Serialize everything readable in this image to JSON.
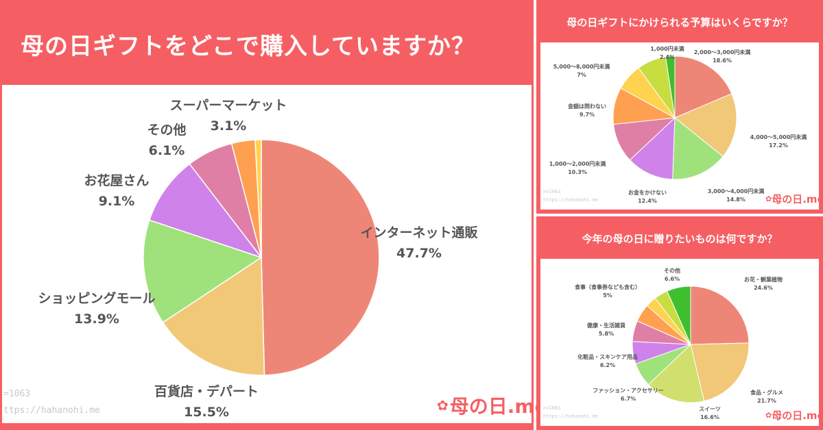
{
  "panels": {
    "main_title": "母の日ギフトをどこで購入していますか？",
    "budget_title": "母の日ギフトにかけられる予算はいくらですか？",
    "gift_title": "今年の母の日に贈りたいものは何ですか？"
  },
  "footer": {
    "main_n": "=1063",
    "main_url": "ttps://hahanohi.me",
    "small_n": "n=1063",
    "small_url": "https://hahanohi.me",
    "logo_text": "の日.me",
    "logo_mark": "母"
  },
  "colors": {
    "brand": "#f55f63",
    "purchase": [
      "#ee8677",
      "#f1c878",
      "#9fe27c",
      "#cf82ea",
      "#df7fa6",
      "#ffa050",
      "#ffd24f",
      "#b5dd3f"
    ],
    "budget": [
      "#ee8677",
      "#f1c878",
      "#9fe27c",
      "#cf82ea",
      "#df7fa6",
      "#ffa050",
      "#ffd24f",
      "#c8dd40",
      "#3fbf30"
    ],
    "gift": [
      "#ee8677",
      "#f1c878",
      "#d1df6f",
      "#9fe27c",
      "#cf82ea",
      "#df7fa6",
      "#ffa050",
      "#ffd24f",
      "#c8dd40",
      "#3fbf30"
    ]
  },
  "chart_data": [
    {
      "type": "pie",
      "title": "母の日ギフトをどこで購入していますか？",
      "categories": [
        "インターネット通販",
        "百貨店・デパート",
        "ショッピングモール",
        "お花屋さん",
        "その他",
        "スーパーマーケット",
        "(未表示)"
      ],
      "values": [
        47.7,
        15.5,
        13.9,
        9.1,
        6.1,
        3.1,
        0.8
      ],
      "labels": [
        {
          "name": "インターネット通販",
          "value": "47.7%"
        },
        {
          "name": "百貨店・デパート",
          "value": "15.5%"
        },
        {
          "name": "ショッピングモール",
          "value": "13.9%"
        },
        {
          "name": "お花屋さん",
          "value": "9.1%"
        },
        {
          "name": "その他",
          "value": "6.1%"
        },
        {
          "name": "スーパーマーケット",
          "value": "3.1%"
        }
      ]
    },
    {
      "type": "pie",
      "title": "母の日ギフトにかけられる予算はいくらですか？",
      "categories": [
        "2,000〜3,000円未満",
        "4,000〜5,000円未満",
        "3,000〜4,000円未満",
        "お金をかけない",
        "1,000〜2,000円未満",
        "金額は問わない",
        "5,000〜8,000円未満",
        "(未表示)",
        "1,000円未満"
      ],
      "values": [
        18.6,
        17.2,
        14.8,
        12.4,
        10.3,
        9.7,
        7.0,
        7.6,
        2.4
      ],
      "labels": [
        {
          "name": "2,000〜3,000円未満",
          "value": "18.6%"
        },
        {
          "name": "4,000〜5,000円未満",
          "value": "17.2%"
        },
        {
          "name": "3,000〜4,000円未満",
          "value": "14.8%"
        },
        {
          "name": "お金をかけない",
          "value": "12.4%"
        },
        {
          "name": "1,000〜2,000円未満",
          "value": "10.3%"
        },
        {
          "name": "金額は問わない",
          "value": "9.7%"
        },
        {
          "name": "5,000〜8,000円未満",
          "value": "7%"
        },
        {
          "name": "1,000円未満",
          "value": "2.4%"
        }
      ]
    },
    {
      "type": "pie",
      "title": "今年の母の日に贈りたいものは何ですか？",
      "categories": [
        "お花・観葉植物",
        "食品・グルメ",
        "スイーツ",
        "ファッション・アクセサリー",
        "化粧品・スキンケア用品",
        "健康・生活雑貨",
        "食事（食事券なども含む）",
        "(未表示)",
        "(未表示)",
        "その他"
      ],
      "values": [
        24.6,
        21.7,
        16.6,
        6.7,
        6.2,
        5.8,
        5.0,
        3.0,
        3.8,
        6.6
      ],
      "labels": [
        {
          "name": "お花・観葉植物",
          "value": "24.6%"
        },
        {
          "name": "食品・グルメ",
          "value": "21.7%"
        },
        {
          "name": "スイーツ",
          "value": "16.6%"
        },
        {
          "name": "ファッション・アクセサリー",
          "value": "6.7%"
        },
        {
          "name": "化粧品・スキンケア用品",
          "value": "6.2%"
        },
        {
          "name": "健康・生活雑貨",
          "value": "5.8%"
        },
        {
          "name": "食事（食事券なども含む）",
          "value": "5%"
        },
        {
          "name": "その他",
          "value": "6.6%"
        }
      ]
    }
  ]
}
